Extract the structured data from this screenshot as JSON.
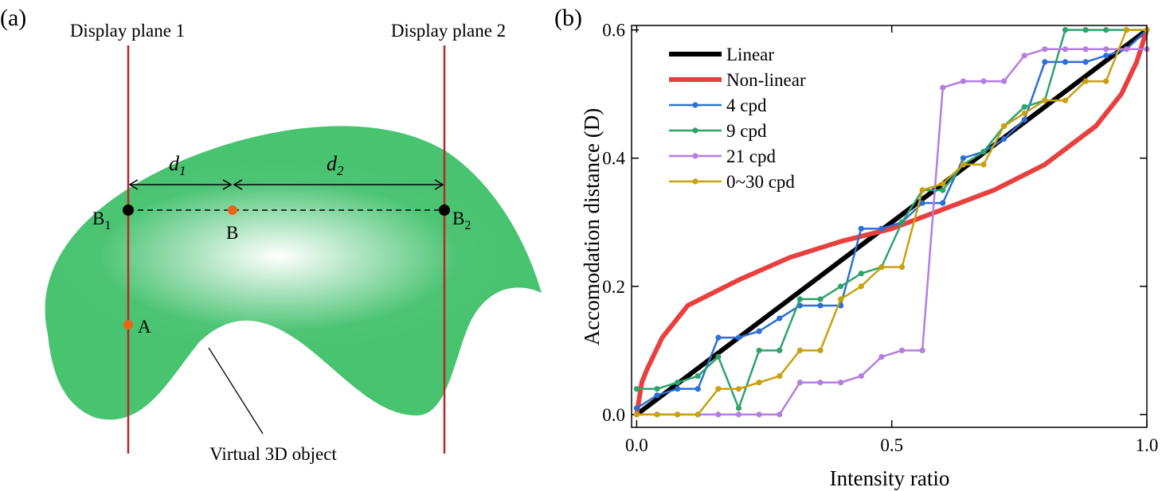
{
  "panel_a": {
    "label": "(a)",
    "plane1": "Display plane 1",
    "plane2": "Display plane 2",
    "d1": {
      "text": "d",
      "sub": "1"
    },
    "d2": {
      "text": "d",
      "sub": "2"
    },
    "b1": {
      "text": "B",
      "sub": "1"
    },
    "b": "B",
    "b2": {
      "text": "B",
      "sub": "2"
    },
    "a": "A",
    "object": "Virtual 3D object"
  },
  "chart_data": {
    "type": "line",
    "label": "(b)",
    "x_label": "Intensity ratio",
    "y_label": "Accomodation distance (D)",
    "xlim": [
      -0.01,
      1.0
    ],
    "ylim": [
      -0.02,
      0.607
    ],
    "xticks": [
      {
        "value": 0,
        "label": "0.0"
      },
      {
        "value": 0.5,
        "label": "0.5"
      },
      {
        "value": 1,
        "label": "1.0"
      }
    ],
    "yticks": [
      {
        "value": 0,
        "label": "0.0"
      },
      {
        "value": 0.2,
        "label": "0.2"
      },
      {
        "value": 0.4,
        "label": "0.4"
      },
      {
        "value": 0.6,
        "label": "0.6"
      }
    ],
    "legend": "upper left",
    "x": [
      0,
      0.04,
      0.08,
      0.12,
      0.16,
      0.2,
      0.24,
      0.28,
      0.32,
      0.36,
      0.4,
      0.44,
      0.48,
      0.52,
      0.56,
      0.6,
      0.64,
      0.68,
      0.72,
      0.76,
      0.8,
      0.84,
      0.88,
      0.92,
      0.96,
      1
    ],
    "series": [
      {
        "name": "Linear",
        "color": "#000000",
        "x": [
          0,
          1
        ],
        "values": [
          0,
          0.6
        ]
      },
      {
        "name": "Non-linear",
        "color": "#e8403f",
        "x": [
          0,
          0.01,
          0.02,
          0.05,
          0.1,
          0.2,
          0.3,
          0.4,
          0.5,
          0.6,
          0.7,
          0.8,
          0.9,
          0.95,
          0.98,
          1
        ],
        "values": [
          0,
          0.05,
          0.07,
          0.12,
          0.17,
          0.21,
          0.245,
          0.27,
          0.29,
          0.32,
          0.35,
          0.39,
          0.45,
          0.5,
          0.55,
          0.6
        ]
      },
      {
        "name": "4 cpd",
        "color": "#2d6fd6",
        "markers": true,
        "values": [
          0.01,
          0.03,
          0.04,
          0.04,
          0.12,
          0.12,
          0.13,
          0.15,
          0.17,
          0.17,
          0.17,
          0.29,
          0.29,
          0.3,
          0.33,
          0.33,
          0.4,
          0.41,
          0.43,
          0.46,
          0.55,
          0.55,
          0.55,
          0.56,
          0.57,
          0.6
        ]
      },
      {
        "name": "9 cpd",
        "color": "#2ea36b",
        "markers": true,
        "values": [
          0.04,
          0.04,
          0.05,
          0.06,
          0.09,
          0.01,
          0.1,
          0.1,
          0.18,
          0.18,
          0.2,
          0.22,
          0.23,
          0.3,
          0.35,
          0.35,
          0.39,
          0.41,
          0.45,
          0.48,
          0.49,
          0.6,
          0.6,
          0.6,
          0.6,
          0.6
        ]
      },
      {
        "name": "21 cpd",
        "color": "#b57de0",
        "markers": true,
        "values": [
          0,
          0,
          0,
          0,
          0,
          0,
          0,
          0,
          0.05,
          0.05,
          0.05,
          0.06,
          0.09,
          0.1,
          0.1,
          0.51,
          0.52,
          0.52,
          0.52,
          0.56,
          0.57,
          0.57,
          0.57,
          0.57,
          0.57,
          0.57
        ]
      },
      {
        "name": "0~30 cpd",
        "color": "#c9a00e",
        "markers": true,
        "values": [
          0,
          0,
          0,
          0,
          0.04,
          0.04,
          0.05,
          0.06,
          0.1,
          0.1,
          0.18,
          0.2,
          0.23,
          0.23,
          0.35,
          0.36,
          0.39,
          0.39,
          0.45,
          0.47,
          0.49,
          0.49,
          0.52,
          0.52,
          0.6,
          0.6
        ]
      }
    ]
  }
}
